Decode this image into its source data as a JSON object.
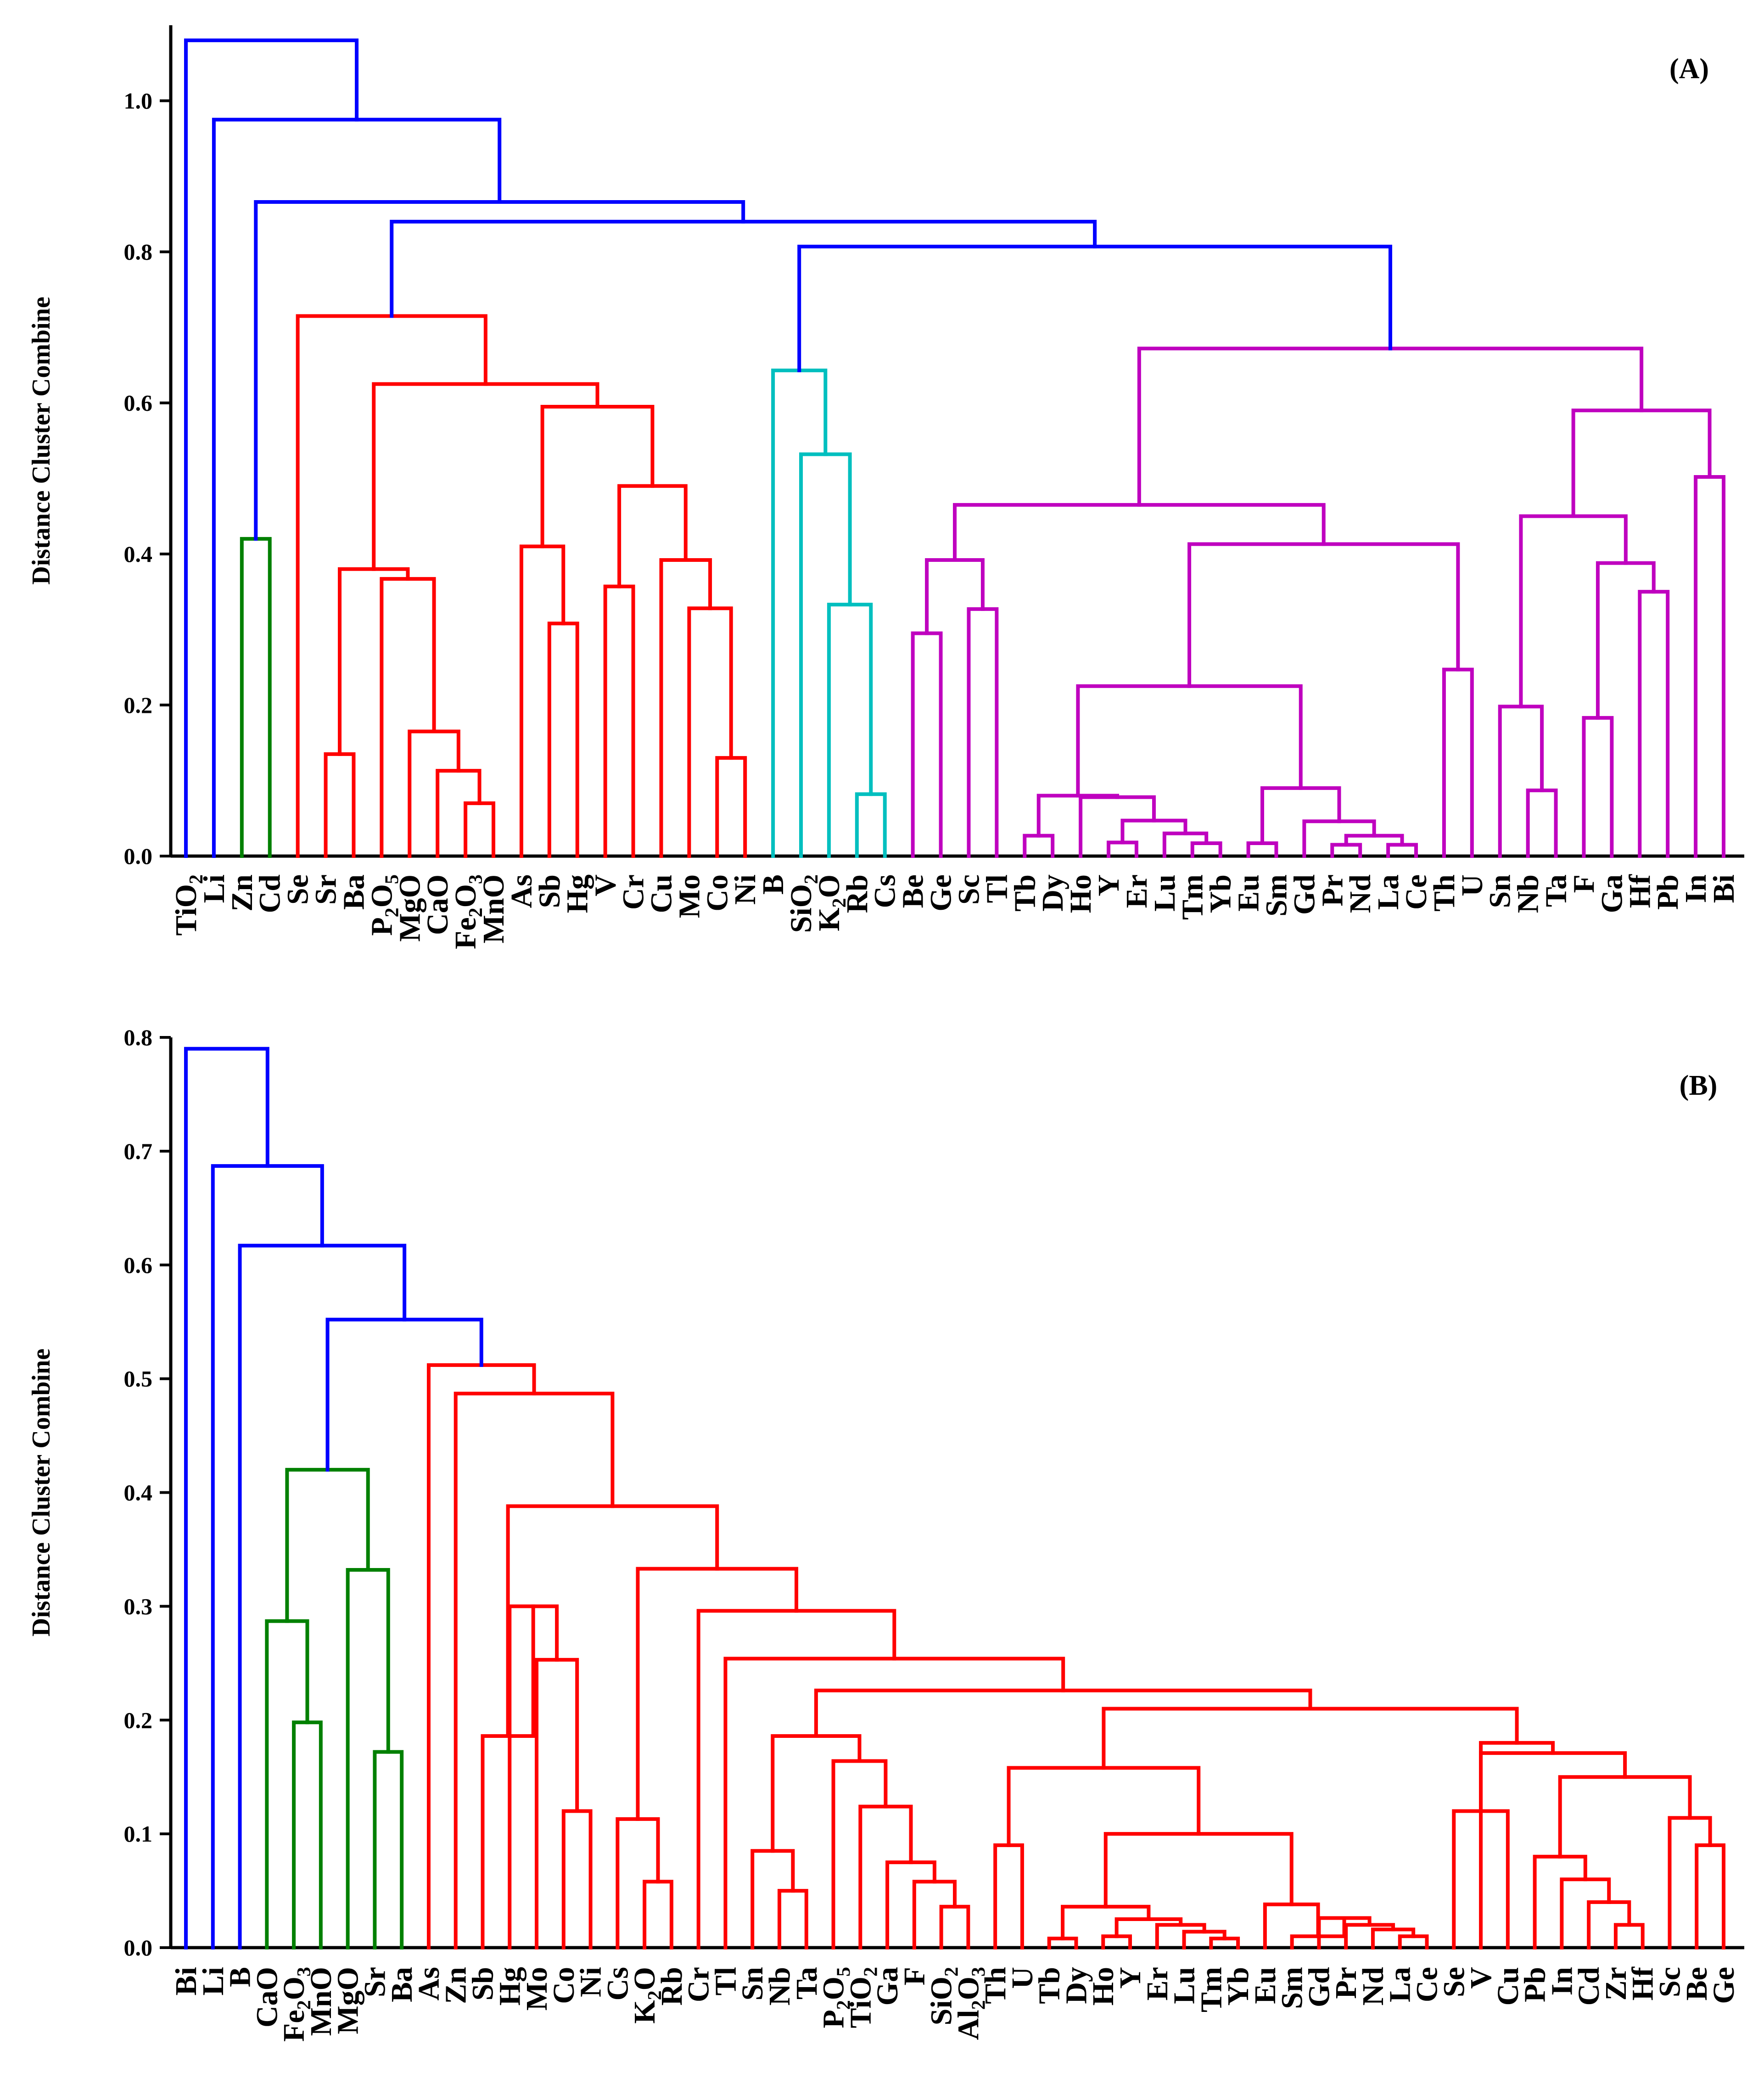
{
  "chart_data": [
    {
      "type": "dendrogram",
      "panel_label": "(A)",
      "ylabel": "Distance Cluster Combine",
      "ylim": [
        0,
        1.1
      ],
      "yticks": [
        "0.0",
        "0.2",
        "0.4",
        "0.6",
        "0.8",
        "1.0"
      ],
      "leaves": [
        "TiO2",
        "Li",
        "Zn",
        "Cd",
        "Se",
        "Sr",
        "Ba",
        "P2O5",
        "MgO",
        "CaO",
        "Fe2O3",
        "MnO",
        "As",
        "Sb",
        "Hg",
        "V",
        "Cr",
        "Cu",
        "Mo",
        "Co",
        "Ni",
        "B",
        "SiO2",
        "K2O",
        "Rb",
        "Cs",
        "Be",
        "Ge",
        "Sc",
        "Tl",
        "Tb",
        "Dy",
        "Ho",
        "Y",
        "Er",
        "Lu",
        "Tm",
        "Yb",
        "Eu",
        "Sm",
        "Gd",
        "Pr",
        "Nd",
        "La",
        "Ce",
        "Th",
        "U",
        "Sn",
        "Nb",
        "Ta",
        "F",
        "Ga",
        "Hf",
        "Pb",
        "In",
        "Bi"
      ],
      "colors": {
        "blue": "#0000ff",
        "red": "#ff0000",
        "green": "#008000",
        "cyan": "#00bfbf",
        "magenta": "#bf00bf"
      },
      "merges": [
        {
          "l": "Zn",
          "r": "Cd",
          "h": 0.42,
          "c": "green"
        },
        {
          "l": "Sr",
          "r": "Ba",
          "h": 0.135,
          "c": "red"
        },
        {
          "l": "Fe2O3",
          "r": "MnO",
          "h": 0.07,
          "c": "red"
        },
        {
          "l": "CaO",
          "r": 2,
          "h": 0.113,
          "c": "red"
        },
        {
          "l": "MgO",
          "r": 3,
          "h": 0.165,
          "c": "red"
        },
        {
          "l": "P2O5",
          "r": 4,
          "h": 0.367,
          "c": "red"
        },
        {
          "l": 1,
          "r": 5,
          "h": 0.38,
          "c": "red"
        },
        {
          "l": "Sb",
          "r": "Hg",
          "h": 0.308,
          "c": "red"
        },
        {
          "l": "As",
          "r": 7,
          "h": 0.41,
          "c": "red"
        },
        {
          "l": "V",
          "r": "Cr",
          "h": 0.357,
          "c": "red"
        },
        {
          "l": "Co",
          "r": "Ni",
          "h": 0.13,
          "c": "red"
        },
        {
          "l": "Mo",
          "r": 10,
          "h": 0.328,
          "c": "red"
        },
        {
          "l": "Cu",
          "r": 11,
          "h": 0.392,
          "c": "red"
        },
        {
          "l": 9,
          "r": 12,
          "h": 0.49,
          "c": "red"
        },
        {
          "l": 8,
          "r": 13,
          "h": 0.595,
          "c": "red"
        },
        {
          "l": 6,
          "r": 14,
          "h": 0.625,
          "c": "red"
        },
        {
          "l": "Se",
          "r": 15,
          "h": 0.715,
          "c": "red"
        },
        {
          "l": "Rb",
          "r": "Cs",
          "h": 0.082,
          "c": "cyan"
        },
        {
          "l": "K2O",
          "r": 17,
          "h": 0.333,
          "c": "cyan"
        },
        {
          "l": "SiO2",
          "r": 18,
          "h": 0.532,
          "c": "cyan"
        },
        {
          "l": "B",
          "r": 19,
          "h": 0.643,
          "c": "cyan"
        },
        {
          "l": "Be",
          "r": "Ge",
          "h": 0.295,
          "c": "magenta"
        },
        {
          "l": "Sc",
          "r": "Tl",
          "h": 0.327,
          "c": "magenta"
        },
        {
          "l": 21,
          "r": 22,
          "h": 0.392,
          "c": "magenta"
        },
        {
          "l": "Tb",
          "r": "Dy",
          "h": 0.027,
          "c": "magenta"
        },
        {
          "l": "Y",
          "r": "Er",
          "h": 0.018,
          "c": "magenta"
        },
        {
          "l": "Tm",
          "r": "Yb",
          "h": 0.017,
          "c": "magenta"
        },
        {
          "l": "Lu",
          "r": 26,
          "h": 0.03,
          "c": "magenta"
        },
        {
          "l": 25,
          "r": 27,
          "h": 0.047,
          "c": "magenta"
        },
        {
          "l": "Ho",
          "r": 28,
          "h": 0.078,
          "c": "magenta"
        },
        {
          "l": 24,
          "r": 29,
          "h": 0.08,
          "c": "magenta"
        },
        {
          "l": "Eu",
          "r": "Sm",
          "h": 0.017,
          "c": "magenta"
        },
        {
          "l": "Pr",
          "r": "Nd",
          "h": 0.015,
          "c": "magenta"
        },
        {
          "l": "La",
          "r": "Ce",
          "h": 0.015,
          "c": "magenta"
        },
        {
          "l": 32,
          "r": 33,
          "h": 0.027,
          "c": "magenta"
        },
        {
          "l": "Gd",
          "r": 34,
          "h": 0.046,
          "c": "magenta"
        },
        {
          "l": 31,
          "r": 35,
          "h": 0.09,
          "c": "magenta"
        },
        {
          "l": 30,
          "r": 36,
          "h": 0.225,
          "c": "magenta"
        },
        {
          "l": "Th",
          "r": "U",
          "h": 0.247,
          "c": "magenta"
        },
        {
          "l": 37,
          "r": 38,
          "h": 0.413,
          "c": "magenta"
        },
        {
          "l": 23,
          "r": 39,
          "h": 0.465,
          "c": "magenta"
        },
        {
          "l": "Nb",
          "r": "Ta",
          "h": 0.087,
          "c": "magenta"
        },
        {
          "l": "Sn",
          "r": 41,
          "h": 0.198,
          "c": "magenta"
        },
        {
          "l": "F",
          "r": "Ga",
          "h": 0.183,
          "c": "magenta"
        },
        {
          "l": "Hf",
          "r": "Pb",
          "h": 0.35,
          "c": "magenta"
        },
        {
          "l": 43,
          "r": 44,
          "h": 0.388,
          "c": "magenta"
        },
        {
          "l": 42,
          "r": 45,
          "h": 0.45,
          "c": "magenta"
        },
        {
          "l": "In",
          "r": "Bi",
          "h": 0.502,
          "c": "magenta"
        },
        {
          "l": 46,
          "r": 47,
          "h": 0.59,
          "c": "magenta"
        },
        {
          "l": 40,
          "r": 48,
          "h": 0.672,
          "c": "magenta"
        },
        {
          "l": 20,
          "r": 49,
          "h": 0.807,
          "c": "blue"
        },
        {
          "l": 16,
          "r": 50,
          "h": 0.84,
          "c": "blue"
        },
        {
          "l": 0,
          "r": 51,
          "h": 0.866,
          "c": "blue"
        },
        {
          "l": "Li",
          "r": 52,
          "h": 0.975,
          "c": "blue"
        },
        {
          "l": "TiO2",
          "r": 53,
          "h": 1.08,
          "c": "blue"
        }
      ]
    },
    {
      "type": "dendrogram",
      "panel_label": "(B)",
      "ylabel": "Distance Cluster Combine",
      "ylim": [
        0,
        0.8
      ],
      "yticks": [
        "0.0",
        "0.1",
        "0.2",
        "0.3",
        "0.4",
        "0.5",
        "0.6",
        "0.7",
        "0.8"
      ],
      "leaves": [
        "Bi",
        "Li",
        "B",
        "CaO",
        "Fe2O3",
        "MnO",
        "MgO",
        "Sr",
        "Ba",
        "As",
        "Zn",
        "Sb",
        "Hg",
        "Mo",
        "Co",
        "Ni",
        "Cs",
        "K2O",
        "Rb",
        "Cr",
        "Tl",
        "Sn",
        "Nb",
        "Ta",
        "P2O5",
        "TiO2",
        "Ga",
        "F",
        "SiO2",
        "Al2O3",
        "Th",
        "U",
        "Tb",
        "Dy",
        "Ho",
        "Y",
        "Er",
        "Lu",
        "Tm",
        "Yb",
        "Eu",
        "Sm",
        "Gd",
        "Pr",
        "Nd",
        "La",
        "Ce",
        "Se",
        "V",
        "Cu",
        "Pb",
        "In",
        "Cd",
        "Zr",
        "Hf",
        "Sc",
        "Be",
        "Ge"
      ],
      "colors": {
        "blue": "#0000ff",
        "red": "#ff0000",
        "green": "#008000"
      },
      "merges": [
        {
          "l": "Fe2O3",
          "r": "MnO",
          "h": 0.198,
          "c": "green"
        },
        {
          "l": "CaO",
          "r": 0,
          "h": 0.287,
          "c": "green"
        },
        {
          "l": "Sr",
          "r": "Ba",
          "h": 0.172,
          "c": "green"
        },
        {
          "l": "MgO",
          "r": 2,
          "h": 0.332,
          "c": "green"
        },
        {
          "l": 1,
          "r": 3,
          "h": 0.42,
          "c": "green"
        },
        {
          "l": "Co",
          "r": "Ni",
          "h": 0.12,
          "c": "red"
        },
        {
          "l": "Mo",
          "r": 5,
          "h": 0.253,
          "c": "red"
        },
        {
          "l": "Hg",
          "r": 6,
          "h": 0.3,
          "c": "red"
        },
        {
          "l": "Sb",
          "r": 7,
          "h": 0.186,
          "c": "red"
        },
        {
          "l": "K2O",
          "r": "Rb",
          "h": 0.058,
          "c": "red"
        },
        {
          "l": "Cs",
          "r": 9,
          "h": 0.113,
          "c": "red"
        },
        {
          "l": "Nb",
          "r": "Ta",
          "h": 0.05,
          "c": "red"
        },
        {
          "l": "Sn",
          "r": 11,
          "h": 0.085,
          "c": "red"
        },
        {
          "l": "SiO2",
          "r": "Al2O3",
          "h": 0.036,
          "c": "red"
        },
        {
          "l": "F",
          "r": 13,
          "h": 0.058,
          "c": "red"
        },
        {
          "l": "Ga",
          "r": 14,
          "h": 0.075,
          "c": "red"
        },
        {
          "l": "TiO2",
          "r": 15,
          "h": 0.124,
          "c": "red"
        },
        {
          "l": "P2O5",
          "r": 16,
          "h": 0.164,
          "c": "red"
        },
        {
          "l": 12,
          "r": 17,
          "h": 0.186,
          "c": "red"
        },
        {
          "l": "Th",
          "r": "U",
          "h": 0.09,
          "c": "red"
        },
        {
          "l": "Tb",
          "r": "Dy",
          "h": 0.008,
          "c": "red"
        },
        {
          "l": "Ho",
          "r": "Y",
          "h": 0.01,
          "c": "red"
        },
        {
          "l": "Tm",
          "r": "Yb",
          "h": 0.008,
          "c": "red"
        },
        {
          "l": "Lu",
          "r": 22,
          "h": 0.014,
          "c": "red"
        },
        {
          "l": "Er",
          "r": 23,
          "h": 0.02,
          "c": "red"
        },
        {
          "l": 21,
          "r": 24,
          "h": 0.025,
          "c": "red"
        },
        {
          "l": 20,
          "r": 25,
          "h": 0.036,
          "c": "red"
        },
        {
          "l": "La",
          "r": "Ce",
          "h": 0.01,
          "c": "red"
        },
        {
          "l": "Nd",
          "r": 27,
          "h": 0.016,
          "c": "red"
        },
        {
          "l": "Pr",
          "r": 28,
          "h": 0.02,
          "c": "red"
        },
        {
          "l": "Gd",
          "r": 29,
          "h": 0.026,
          "c": "red"
        },
        {
          "l": "Sm",
          "r": 30,
          "h": 0.01,
          "c": "red"
        },
        {
          "l": "Eu",
          "r": 31,
          "h": 0.038,
          "c": "red"
        },
        {
          "l": 26,
          "r": 32,
          "h": 0.1,
          "c": "red"
        },
        {
          "l": 19,
          "r": 33,
          "h": 0.158,
          "c": "red"
        },
        {
          "l": "Cu",
          "r": "Se",
          "h": 0.12,
          "c": "red"
        },
        {
          "l": "Hf",
          "r": "Zr",
          "h": 0.02,
          "c": "red"
        },
        {
          "l": "Cd",
          "r": 36,
          "h": 0.04,
          "c": "red"
        },
        {
          "l": "In",
          "r": 37,
          "h": 0.06,
          "c": "red"
        },
        {
          "l": "Pb",
          "r": 38,
          "h": 0.08,
          "c": "red"
        },
        {
          "l": "Be",
          "r": "Ge",
          "h": 0.09,
          "c": "red"
        },
        {
          "l": "Sc",
          "r": 40,
          "h": 0.114,
          "c": "red"
        },
        {
          "l": 39,
          "r": 41,
          "h": 0.15,
          "c": "red"
        },
        {
          "l": "V",
          "r": 42,
          "h": 0.171,
          "c": "red"
        },
        {
          "l": 35,
          "r": 43,
          "h": 0.18,
          "c": "red"
        },
        {
          "l": 34,
          "r": 44,
          "h": 0.21,
          "c": "red"
        },
        {
          "l": 18,
          "r": 45,
          "h": 0.226,
          "c": "red"
        },
        {
          "l": "Tl",
          "r": 46,
          "h": 0.254,
          "c": "red"
        },
        {
          "l": "Cr",
          "r": 47,
          "h": 0.296,
          "c": "red"
        },
        {
          "l": 10,
          "r": 48,
          "h": 0.333,
          "c": "red"
        },
        {
          "l": 8,
          "r": 49,
          "h": 0.388,
          "c": "red"
        },
        {
          "l": "Zn",
          "r": 50,
          "h": 0.487,
          "c": "red"
        },
        {
          "l": "As",
          "r": 51,
          "h": 0.512,
          "c": "red"
        },
        {
          "l": 4,
          "r": 52,
          "h": 0.552,
          "c": "blue"
        },
        {
          "l": "B",
          "r": 53,
          "h": 0.617,
          "c": "blue"
        },
        {
          "l": "Li",
          "r": 54,
          "h": 0.687,
          "c": "blue"
        },
        {
          "l": "Bi",
          "r": 55,
          "h": 0.79,
          "c": "blue"
        }
      ]
    }
  ]
}
